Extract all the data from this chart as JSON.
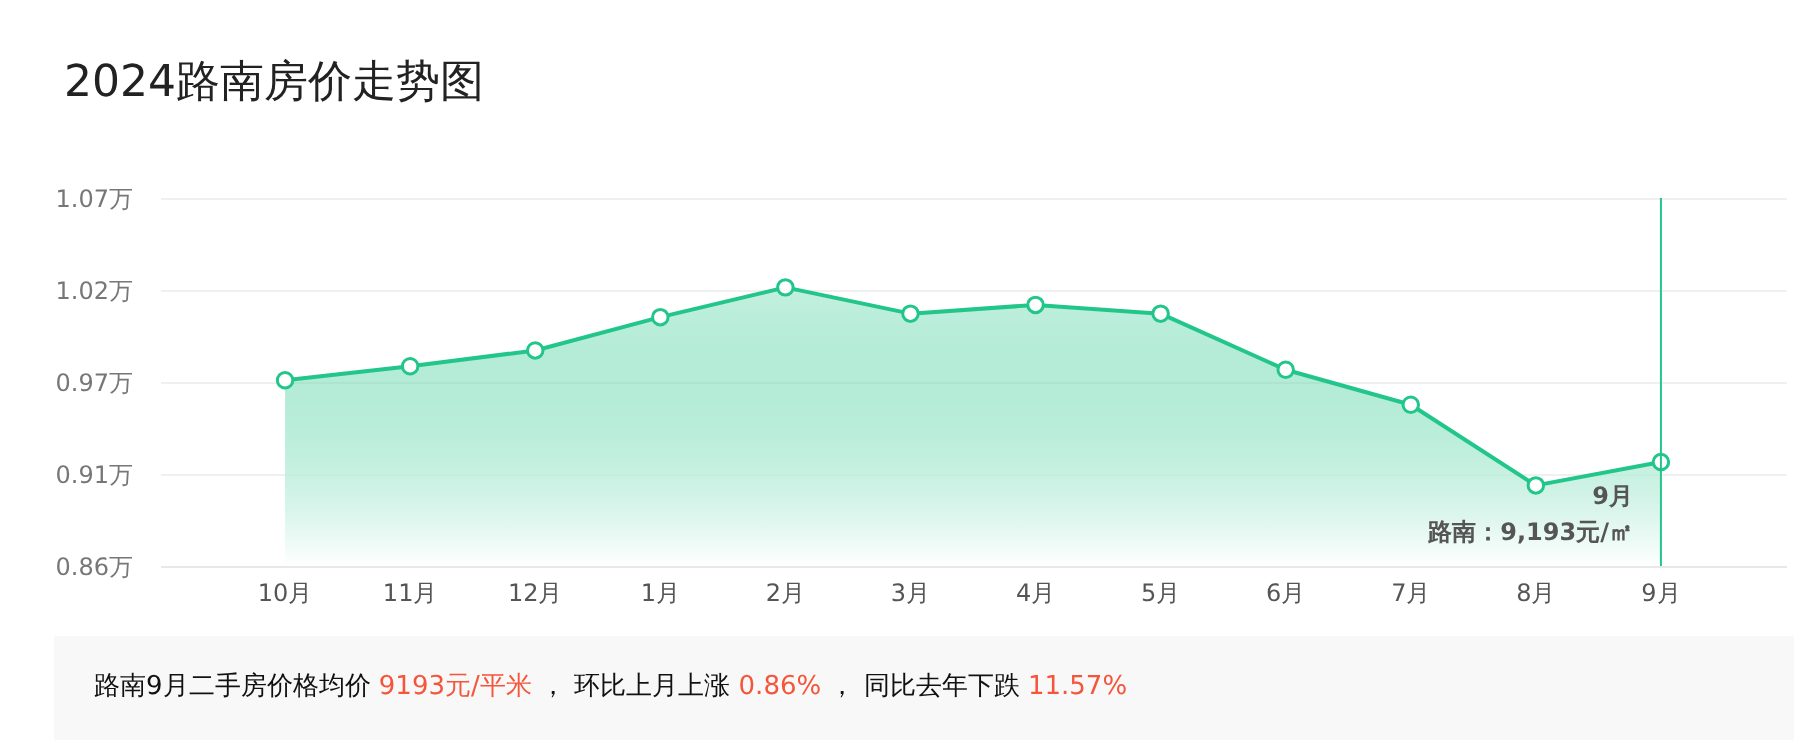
{
  "chart_data": {
    "type": "area",
    "title": "2024路南房价走势图",
    "categories": [
      "10月",
      "11月",
      "12月",
      "1月",
      "2月",
      "3月",
      "4月",
      "5月",
      "6月",
      "7月",
      "8月",
      "9月"
    ],
    "series": [
      {
        "color": "#22c68b",
        "values": [
          0.966,
          0.974,
          0.983,
          1.002,
          1.019,
          1.004,
          1.009,
          1.004,
          0.972,
          0.952,
          0.906,
          0.9193
        ]
      }
    ],
    "ylim": [
      0.86,
      1.07
    ],
    "yticks": [
      {
        "value": 0.86,
        "label": "0.86万"
      },
      {
        "value": 0.9125,
        "label": "0.91万"
      },
      {
        "value": 0.965,
        "label": "0.97万"
      },
      {
        "value": 1.0175,
        "label": "1.02万"
      },
      {
        "value": 1.07,
        "label": "1.07万"
      }
    ],
    "grid": "y",
    "marker": "circle",
    "ref_lines": [
      {
        "axis": "x",
        "value": "9月",
        "color": "#22c68b"
      }
    ],
    "annotations": [
      {
        "text": "9月",
        "x": "9月",
        "y": 0.9193
      },
      {
        "text": "路南：9,193元/㎡",
        "x": "9月",
        "y": 0.9193
      },
      "路南9月二手房价格均价 9193元/平米 ， 环比上月上涨 0.86% ， 同比去年下跌 11.57%"
    ]
  }
}
